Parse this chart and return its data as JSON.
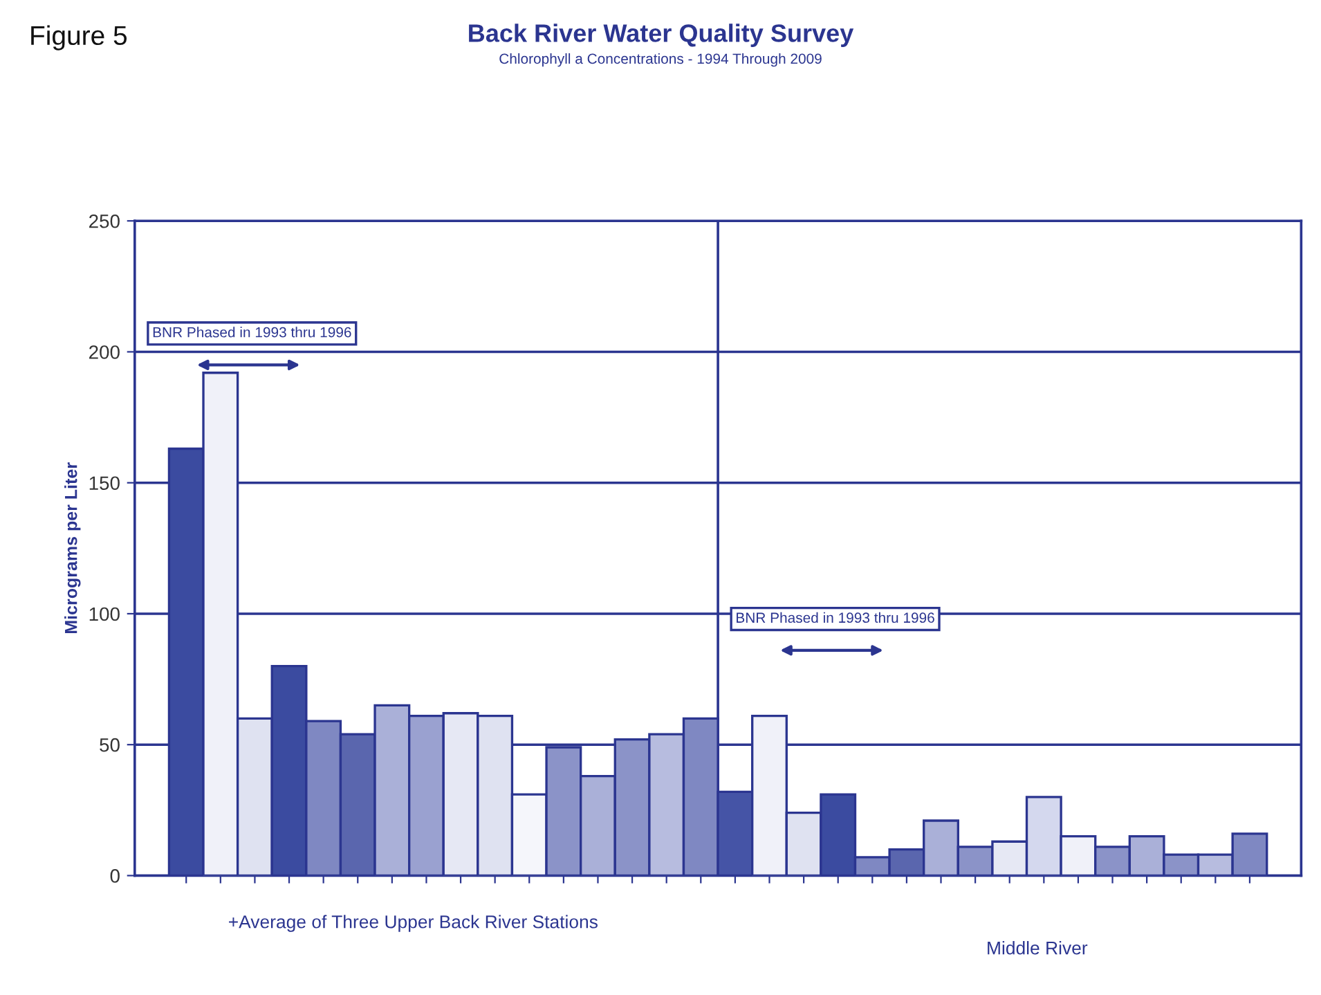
{
  "chart_data": {
    "type": "bar",
    "title": "Back River Water Quality Survey",
    "subtitle": "Chlorophyll a Concentrations - 1994 Through 2009",
    "ylabel": "Micrograms per Liter",
    "annotations": [
      "Figure 5",
      "BNR Phased in 1993 thru 1996",
      "BNR Phased in 1993 thru 1996",
      "+Average of Three Upper Back River Stations",
      "Middle River"
    ],
    "categories": [
      null,
      null,
      null,
      null,
      null,
      null,
      null,
      null,
      null,
      null,
      null,
      null,
      null,
      null,
      null,
      null,
      null,
      null,
      null,
      null,
      null,
      null,
      null,
      null,
      null,
      null,
      null,
      null,
      null,
      null,
      null,
      null
    ],
    "values": [
      163,
      192,
      60,
      80,
      59,
      54,
      65,
      61,
      62,
      61,
      31,
      49,
      38,
      52,
      54,
      60,
      32,
      61,
      24,
      31,
      7,
      10,
      21,
      11,
      13,
      30,
      15,
      11,
      15,
      8,
      8,
      16
    ],
    "colors": [
      "#3b4ba0",
      "#f0f1f9",
      "#dfe2f1",
      "#3b4ba0",
      "#7f88c2",
      "#5a66ae",
      "#aab0d8",
      "#9aa1d0",
      "#e6e8f4",
      "#dfe2f1",
      "#f5f6fb",
      "#8b93c8",
      "#aab0d8",
      "#8b93c8",
      "#b7bcdf",
      "#7f88c2",
      "#4554a6",
      "#f0f1f9",
      "#dfe2f1",
      "#3b4ba0",
      "#7f88c2",
      "#5a66ae",
      "#aab0d8",
      "#8b93c8",
      "#e6e8f4",
      "#d4d8ee",
      "#f0f1f9",
      "#8b93c8",
      "#aab0d8",
      "#8b93c8",
      "#b7bcdf",
      "#7f88c2"
    ],
    "ylim": [
      0,
      250
    ],
    "yticks": [
      0,
      50,
      100,
      150,
      200,
      250
    ],
    "grid": "y"
  }
}
